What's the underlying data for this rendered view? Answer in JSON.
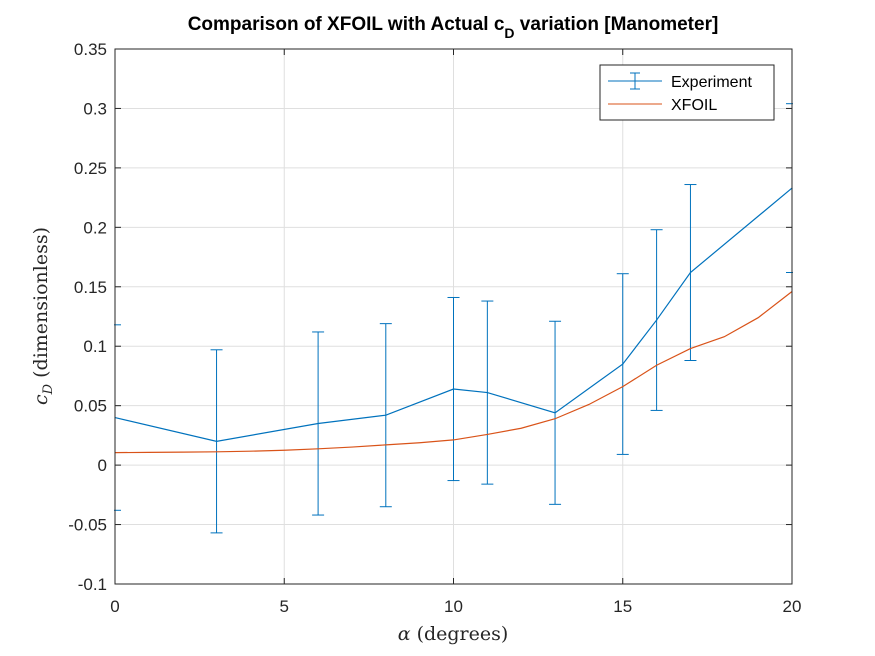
{
  "chart_data": {
    "type": "line",
    "title": "Comparison of XFOIL with Actual c",
    "title_sub": "D",
    "title_suffix": " variation [Manometer]",
    "xlabel_symbol": "α",
    "xlabel_text": " (degrees)",
    "ylabel_symbol": "c",
    "ylabel_sub": "D",
    "ylabel_text": " (dimensionless)",
    "xlim": [
      0,
      20
    ],
    "ylim": [
      -0.1,
      0.35
    ],
    "xticks": [
      0,
      5,
      10,
      15,
      20
    ],
    "xtick_labels": [
      "0",
      "5",
      "10",
      "15",
      "20"
    ],
    "yticks": [
      -0.1,
      -0.05,
      0,
      0.05,
      0.1,
      0.15,
      0.2,
      0.25,
      0.3,
      0.35
    ],
    "ytick_labels": [
      "-0.1",
      "-0.05",
      "0",
      "0.05",
      "0.1",
      "0.15",
      "0.2",
      "0.25",
      "0.3",
      "0.35"
    ],
    "grid": true,
    "legend_position": "top-right",
    "series": [
      {
        "name": "Experiment",
        "color": "#0072BD",
        "kind": "errorbar",
        "x": [
          0,
          3,
          6,
          8,
          10,
          11,
          13,
          15,
          16,
          17,
          20
        ],
        "y": [
          0.04,
          0.02,
          0.035,
          0.042,
          0.064,
          0.061,
          0.044,
          0.085,
          0.122,
          0.162,
          0.233
        ],
        "err": [
          0.078,
          0.077,
          0.077,
          0.077,
          0.077,
          0.077,
          0.077,
          0.076,
          0.076,
          0.074,
          0.071
        ]
      },
      {
        "name": "XFOIL",
        "color": "#D95319",
        "kind": "line",
        "x": [
          0,
          1,
          2,
          3,
          4,
          5,
          6,
          7,
          8,
          9,
          10,
          11,
          12,
          13,
          14,
          15,
          16,
          17,
          17.6,
          18,
          19,
          20
        ],
        "y": [
          0.0105,
          0.0107,
          0.0109,
          0.0112,
          0.0117,
          0.0125,
          0.0137,
          0.0152,
          0.017,
          0.0188,
          0.0212,
          0.0258,
          0.031,
          0.039,
          0.051,
          0.066,
          0.084,
          0.098,
          0.104,
          0.108,
          0.124,
          0.146
        ]
      }
    ]
  }
}
